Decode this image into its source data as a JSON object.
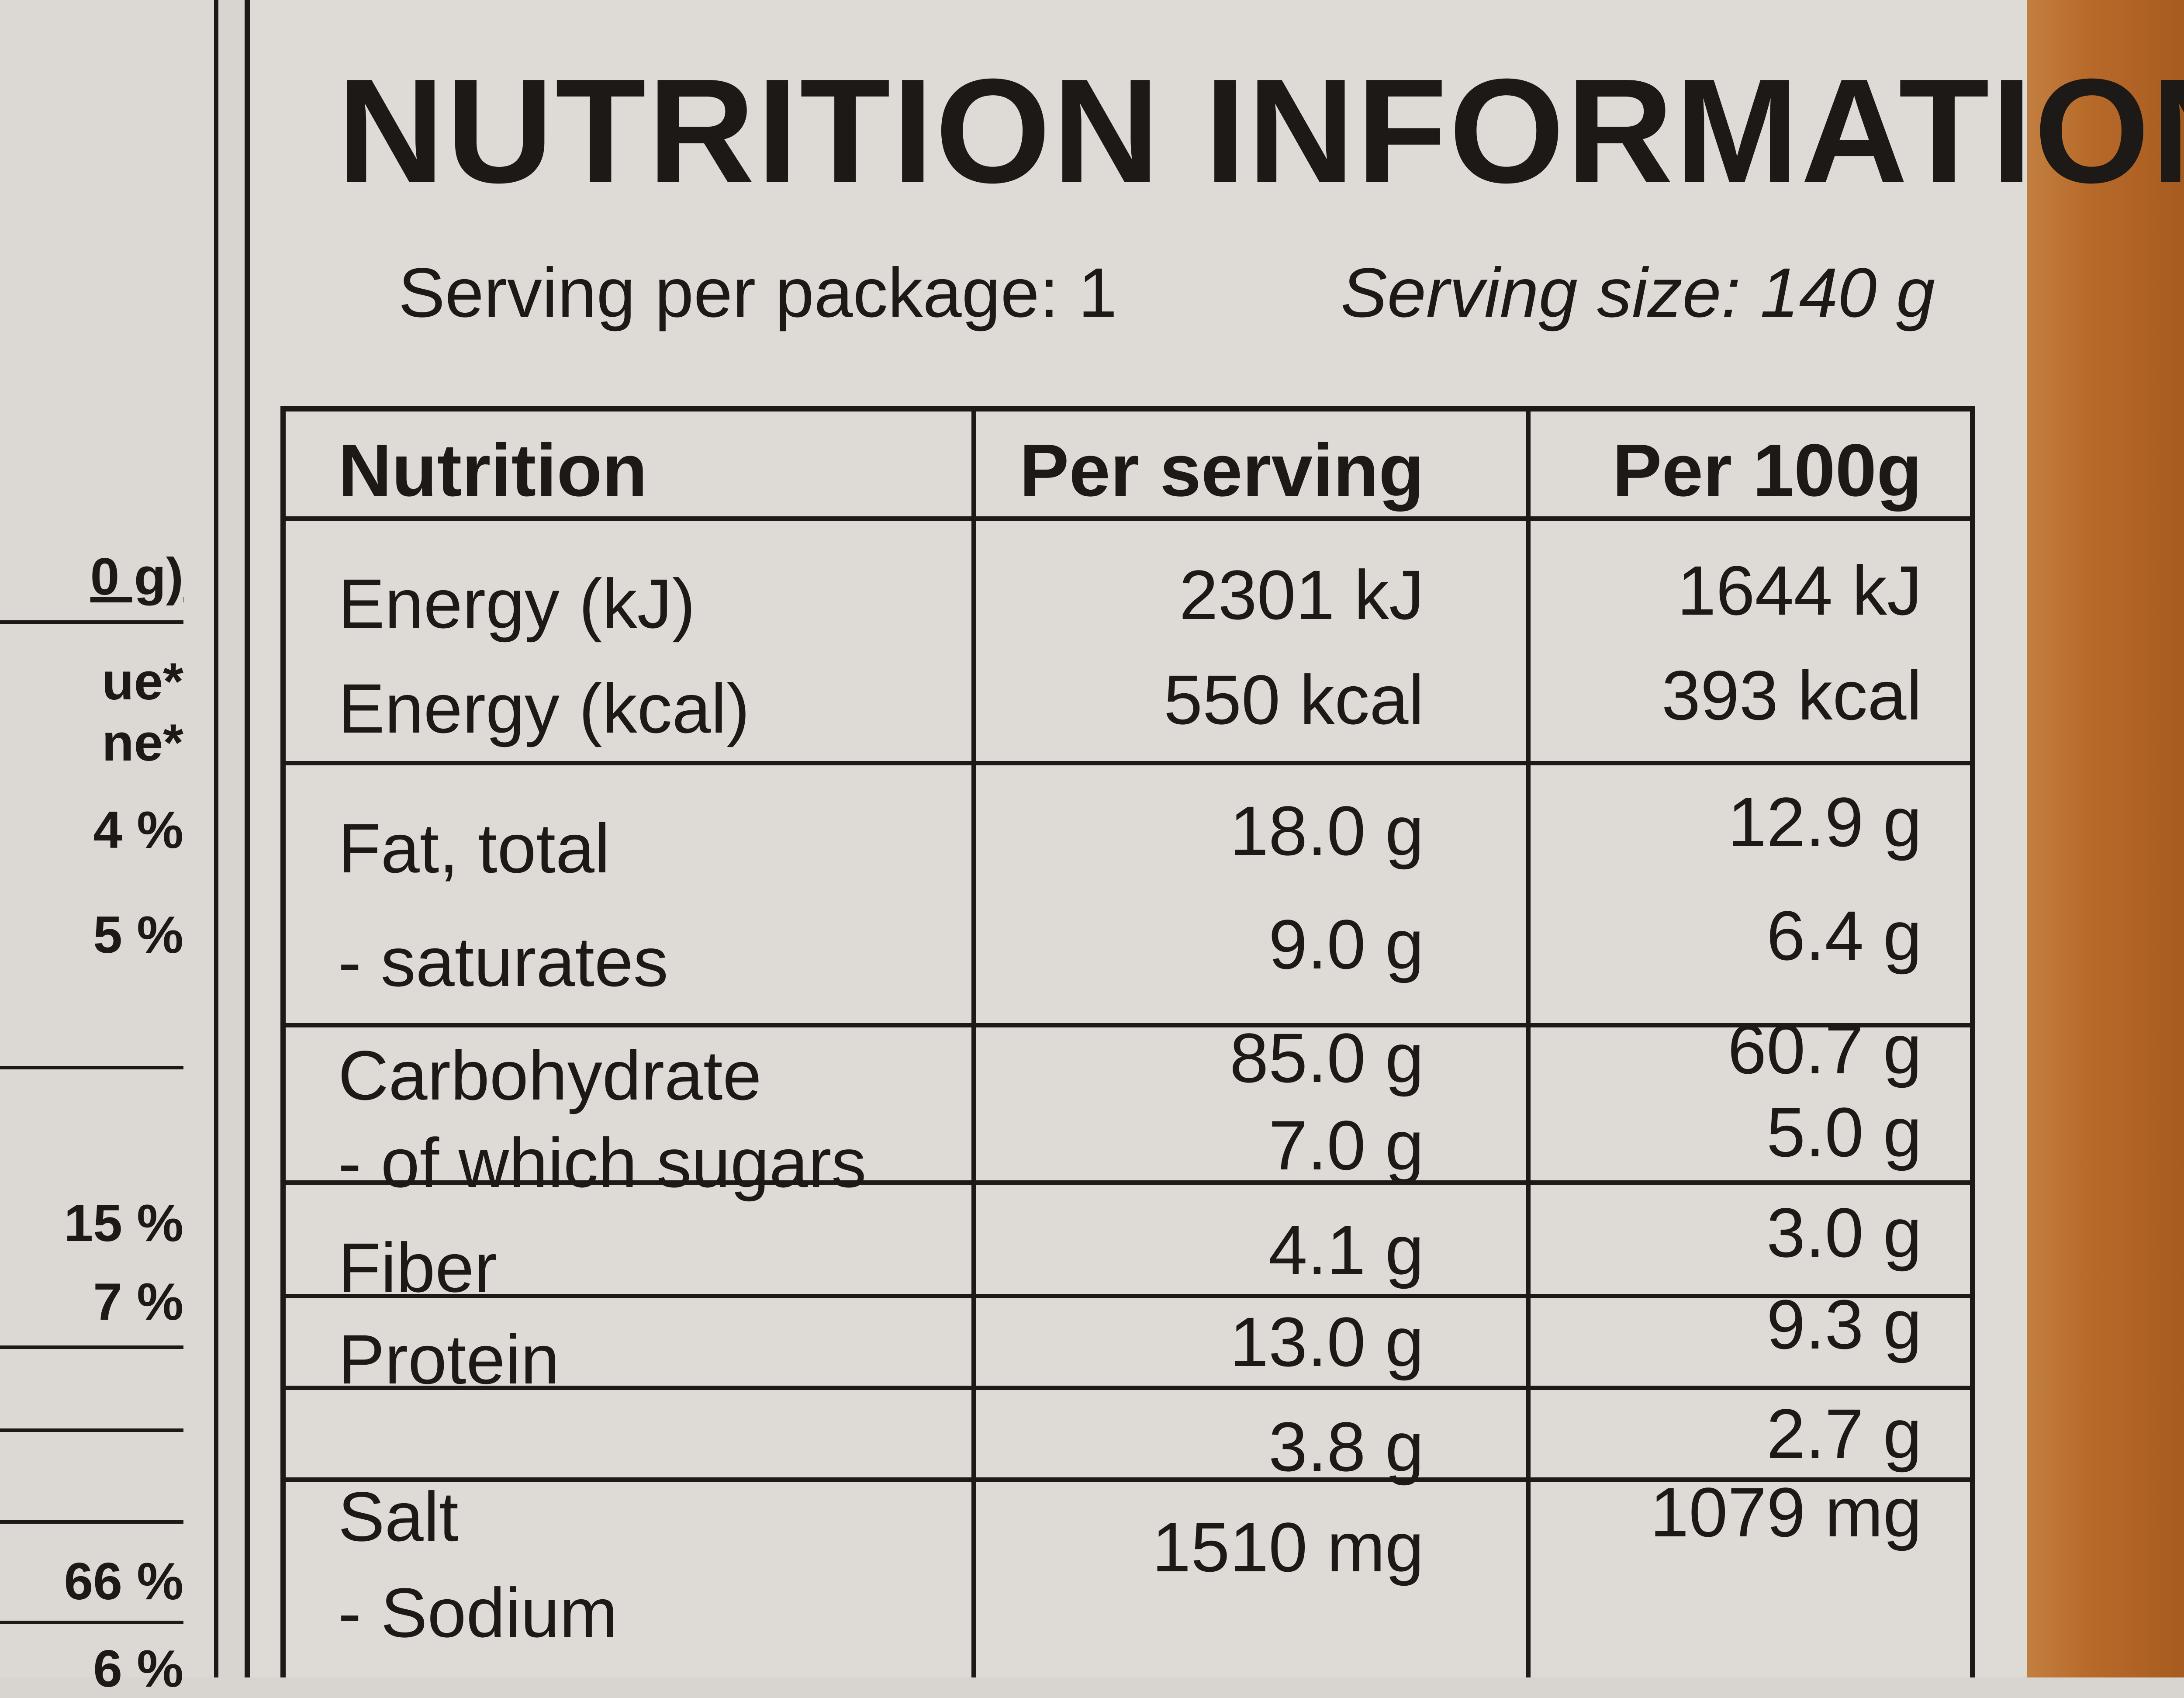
{
  "left_panel": {
    "fragments": [
      "0 g)",
      "ue*",
      "ne*",
      "4 %",
      "5 %",
      "15 %",
      "7 %",
      "66 %",
      "6 %"
    ]
  },
  "label": {
    "title": "NUTRITION INFORMATION",
    "serving_per_package": "Serving per package: 1",
    "serving_size": "Serving size: 140 g"
  },
  "table": {
    "headers": {
      "nutrition": "Nutrition",
      "per_serving": "Per serving",
      "per_100g": "Per 100g"
    },
    "rows": [
      {
        "name": "Energy (kJ)",
        "per_serving": "2301 kJ",
        "per_100g": "1644 kJ"
      },
      {
        "name": "Energy (kcal)",
        "per_serving": "550 kcal",
        "per_100g": "393 kcal"
      },
      {
        "name": "Fat, total",
        "per_serving": "18.0 g",
        "per_100g": "12.9 g"
      },
      {
        "name": "- saturates",
        "per_serving": "9.0 g",
        "per_100g": "6.4 g"
      },
      {
        "name": "Carbohydrate",
        "per_serving": "85.0 g",
        "per_100g": "60.7 g"
      },
      {
        "name": "- of which sugars",
        "per_serving": "7.0 g",
        "per_100g": "5.0 g"
      },
      {
        "name": "Fiber",
        "per_serving": "4.1 g",
        "per_100g": "3.0 g"
      },
      {
        "name": "Protein",
        "per_serving": "13.0 g",
        "per_100g": "9.3 g"
      },
      {
        "name": "Salt",
        "per_serving": "3.8 g",
        "per_100g": "2.7 g"
      },
      {
        "name": "- Sodium",
        "per_serving": "1510 mg",
        "per_100g": "1079 mg"
      }
    ]
  }
}
